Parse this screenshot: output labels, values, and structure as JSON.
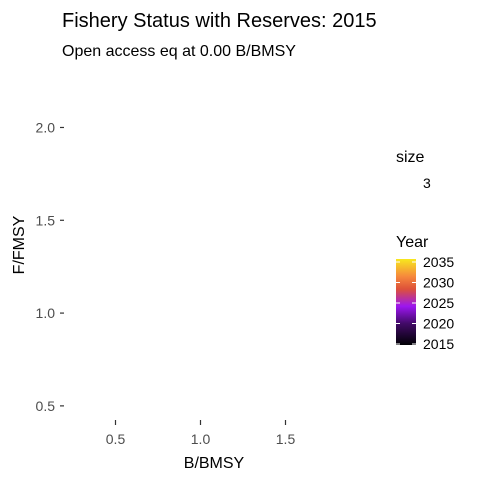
{
  "chart_data": {
    "type": "scatter",
    "title": "Fishery Status with Reserves: 2015",
    "subtitle": "Open access eq at 0.00 B/BMSY",
    "xlabel": "B/BMSY",
    "ylabel": "F/FMSY",
    "xlim": [
      0.15,
      2.0
    ],
    "ylim": [
      0.3,
      2.0
    ],
    "x_ticks": [
      0.5,
      1.0,
      1.5
    ],
    "x_tick_labels": [
      "0.5",
      "1.0",
      "1.5"
    ],
    "y_ticks": [
      0.5,
      1.0,
      1.5,
      2.0
    ],
    "y_tick_labels": [
      "0.5",
      "1.0",
      "1.5",
      "2.0"
    ],
    "grid": false,
    "background": "#ffffff",
    "series": [],
    "legend": {
      "placement": "right",
      "size": {
        "title": "size",
        "value": "3"
      },
      "color": {
        "title": "Year",
        "min": 2015,
        "max": 2035,
        "ticks": [
          2015,
          2020,
          2025,
          2030,
          2035
        ],
        "tick_labels": [
          "2015",
          "2020",
          "2025",
          "2030",
          "2035"
        ],
        "palette": [
          "#0d0887",
          "#7e03a8",
          "#cc4778",
          "#f89540",
          "#f0f921"
        ],
        "palette_dark_end": "#000004"
      }
    }
  }
}
